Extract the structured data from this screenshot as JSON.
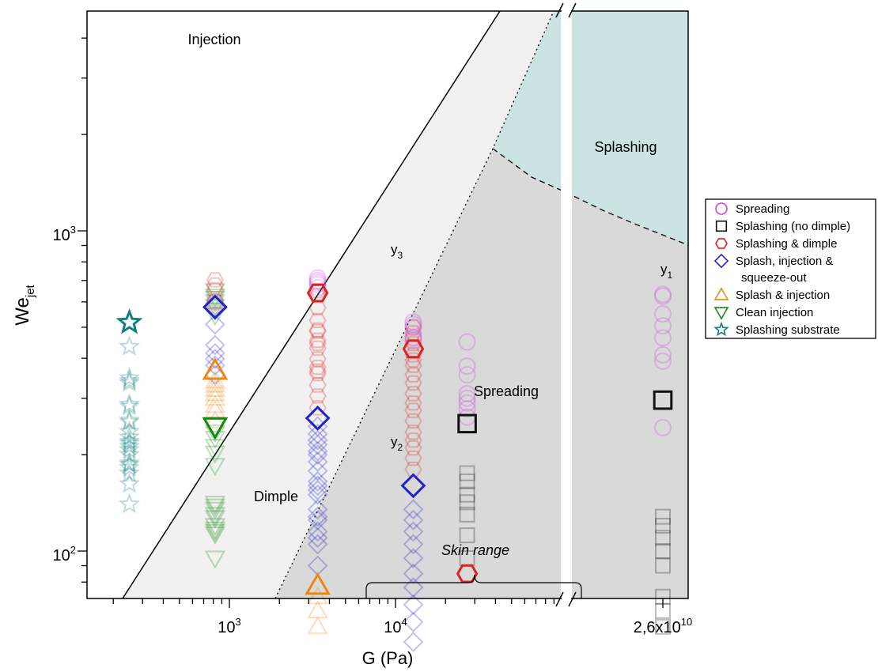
{
  "chart_data": {
    "type": "scatter",
    "x_scale": "log",
    "y_scale": "log",
    "xlabel": "G (Pa)",
    "ylabel_main": "We",
    "ylabel_sub": "jet",
    "x_ticks": [
      {
        "main": "10",
        "sup": "3"
      },
      {
        "main": "10",
        "sup": "4"
      },
      {
        "main": "2,6x10",
        "sup": "10"
      }
    ],
    "y_ticks": [
      {
        "main": "10",
        "sup": "2"
      },
      {
        "main": "10",
        "sup": "3"
      }
    ],
    "regions": {
      "injection": "Injection",
      "dimple": "Dimple",
      "spreading": "Spreading",
      "splashing": "Splashing",
      "skin_range": "Skin range"
    },
    "curves": [
      {
        "main": "y",
        "sub": "1"
      },
      {
        "main": "y",
        "sub": "2"
      },
      {
        "main": "y",
        "sub": "3"
      }
    ],
    "legend_position": "right",
    "legend": [
      {
        "label": "Spreading",
        "shape": "circle",
        "color": "#cc44dd"
      },
      {
        "label": "Splashing (no dimple)",
        "shape": "square",
        "color": "#111111"
      },
      {
        "label": "Splashing & dimple",
        "shape": "hexagon",
        "color": "#dd2222"
      },
      {
        "label": "Splash, injection &",
        "label2": "squeeze-out",
        "shape": "diamond",
        "color": "#2222cc"
      },
      {
        "label": "Splash & injection",
        "shape": "triangle-up",
        "color": "#ee8811"
      },
      {
        "label": "Clean injection",
        "shape": "triangle-down",
        "color": "#118811"
      },
      {
        "label": "Splashing substrate",
        "shape": "star",
        "color": "#117f7f"
      }
    ],
    "colors": {
      "Spreading": "#cc44dd",
      "Splashing (no dimple)": "#111111",
      "Splashing & dimple": "#dd2222",
      "Splash, injection & squeeze-out": "#2222cc",
      "Splash & injection": "#ee8811",
      "Clean injection": "#118811",
      "Splashing substrate": "#117f7f",
      "splashing_region": "#cce3e4",
      "spreading_region": "#d9d9d9",
      "dimple_region": "#f1f1f1"
    },
    "series": [
      {
        "name": "Splashing substrate",
        "shape": "star",
        "x": 250,
        "y": [
          140,
          162,
          175,
          182,
          186,
          188,
          200,
          207,
          212,
          217,
          220,
          227,
          236,
          253,
          256,
          283,
          287,
          335,
          340,
          347,
          435
        ],
        "highlight": 517
      },
      {
        "name": "Clean injection",
        "shape": "triangle-down",
        "x": 820,
        "y": [
          95,
          113,
          115,
          117,
          120,
          127,
          130,
          135,
          138,
          141,
          185,
          202,
          212,
          225,
          235,
          545,
          565,
          580,
          600,
          615,
          625,
          650
        ],
        "highlight": 245
      },
      {
        "name": "Splash & injection",
        "shape": "triangle-up",
        "x": 820,
        "y": [
          255,
          275,
          285,
          300,
          310,
          320,
          330,
          340
        ],
        "highlight": 366
      },
      {
        "name": "Splash, injection & squeeze-out",
        "shape": "diamond",
        "x": 820,
        "y": [
          355,
          380,
          398,
          415,
          440,
          510
        ],
        "highlight": 578
      },
      {
        "name": "Spreading",
        "shape": "circle",
        "x": 820,
        "y": [
          585,
          600
        ],
        "highlight": null
      },
      {
        "name": "Splashing & dimple",
        "shape": "hexagon",
        "x": 820,
        "y": [
          605,
          655,
          678,
          703
        ],
        "highlight": null
      },
      {
        "name": "Splash & injection",
        "shape": "triangle-up",
        "x": 3400,
        "y": [
          58,
          65,
          72
        ],
        "highlight": 78
      },
      {
        "name": "Splash, injection & squeeze-out",
        "shape": "diamond",
        "x": 3400,
        "y": [
          90,
          105,
          110,
          115,
          125,
          128,
          135,
          150,
          155,
          160,
          165,
          178,
          190,
          200,
          205,
          215,
          222,
          232,
          245
        ],
        "highlight": 260
      },
      {
        "name": "Splashing & dimple",
        "shape": "hexagon",
        "x": 3400,
        "y": [
          280,
          305,
          330,
          358,
          365,
          375,
          398,
          430,
          445,
          455,
          485,
          490,
          525,
          575,
          628,
          650
        ],
        "highlight": 640
      },
      {
        "name": "Spreading",
        "shape": "circle",
        "x": 3400,
        "y": [
          665,
          680,
          690,
          700,
          713
        ],
        "highlight": null
      },
      {
        "name": "Splash, injection & squeeze-out",
        "shape": "diamond",
        "x": 12800,
        "y": [
          52,
          60,
          68,
          77,
          85,
          95,
          105,
          115,
          125,
          135
        ],
        "highlight": 160
      },
      {
        "name": "Splashing & dimple",
        "shape": "hexagon",
        "x": 12800,
        "y": [
          180,
          195,
          210,
          222,
          235,
          255,
          275,
          290,
          310,
          335,
          355,
          380,
          395,
          410,
          445,
          480,
          500
        ],
        "highlight": 428
      },
      {
        "name": "Spreading",
        "shape": "circle",
        "x": 12800,
        "y": [
          455,
          462,
          465,
          500,
          510,
          520
        ],
        "highlight": null
      },
      {
        "name": "Splashing & dimple",
        "shape": "hexagon",
        "x": 27000,
        "y": [],
        "highlight": 85
      },
      {
        "name": "Splashing (no dimple)",
        "shape": "square",
        "x": 27000,
        "y": [
          95,
          112,
          130,
          142,
          150,
          165,
          175
        ],
        "highlight": 250
      },
      {
        "name": "Spreading",
        "shape": "circle",
        "x": 27000,
        "y": [
          262,
          278,
          290,
          300,
          310,
          355,
          378,
          450
        ],
        "highlight": null
      },
      {
        "name": "Splashing (no dimple)",
        "shape": "square",
        "x": "2,6x10^10",
        "y": [
          58,
          65,
          72,
          90,
          100,
          110,
          120,
          128
        ],
        "highlight": 296
      },
      {
        "name": "Spreading",
        "shape": "circle",
        "x": "2,6x10^10",
        "y": [
          243,
          392,
          410,
          463,
          505,
          550,
          625,
          633
        ],
        "highlight": null
      }
    ]
  }
}
